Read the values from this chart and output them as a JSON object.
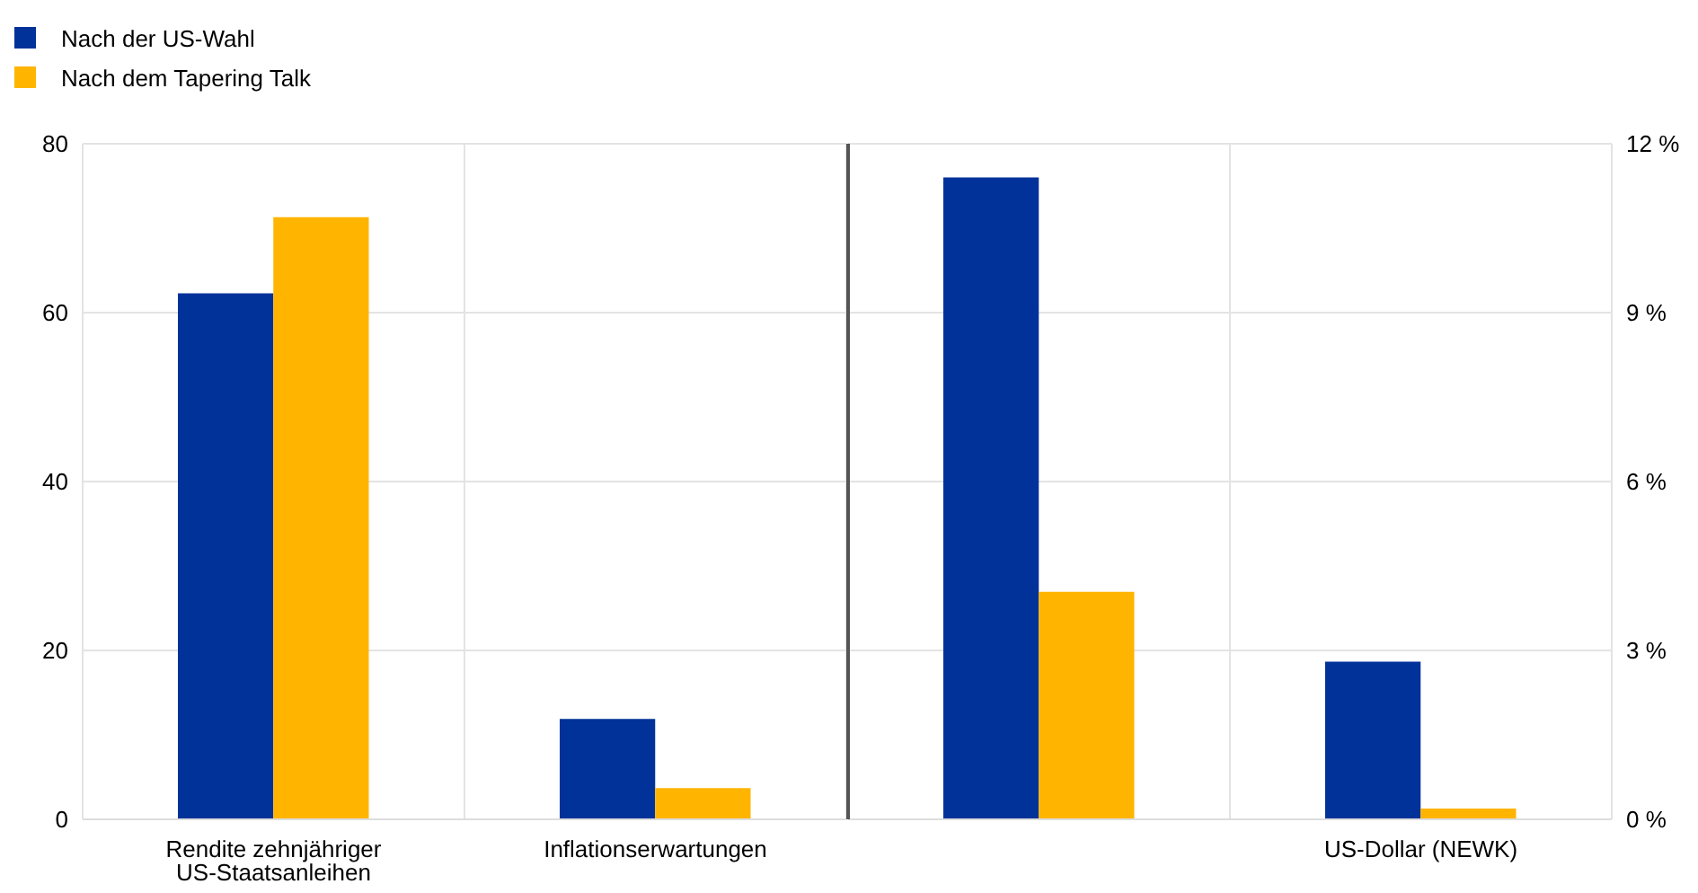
{
  "chart_data": [
    {
      "type": "bar",
      "categories": [
        "Rendite zehnjähriger US-Staatsanleihen",
        "Inflationserwartungen"
      ],
      "series": [
        {
          "name": "Nach der US-Wahl",
          "color": "#003299",
          "values": [
            62.3,
            11.9
          ]
        },
        {
          "name": "Nach dem Tapering Talk",
          "color": "#ffb400",
          "values": [
            71.3,
            3.7
          ]
        }
      ],
      "ylim": [
        0,
        80
      ],
      "yticks": [
        0,
        20,
        40,
        60,
        80
      ],
      "grid": true,
      "legend": "top left"
    },
    {
      "type": "bar",
      "categories": [
        null,
        "US-Dollar (NEWK)"
      ],
      "series": [
        {
          "color": "#003299",
          "axis": "y2",
          "values": [
            11.4,
            2.8
          ]
        },
        {
          "color": "#ffb400",
          "axis": "y2",
          "values": [
            4.04,
            0.19
          ]
        }
      ],
      "y2lim": [
        0,
        12
      ],
      "y2ticks": [
        {
          "value": 0,
          "label": "0 %"
        },
        {
          "value": 3,
          "label": "3 %"
        },
        {
          "value": 6,
          "label": "6 %"
        },
        {
          "value": 9,
          "label": "9 %"
        },
        {
          "value": 12,
          "label": "12 %"
        }
      ],
      "grid": true
    }
  ]
}
